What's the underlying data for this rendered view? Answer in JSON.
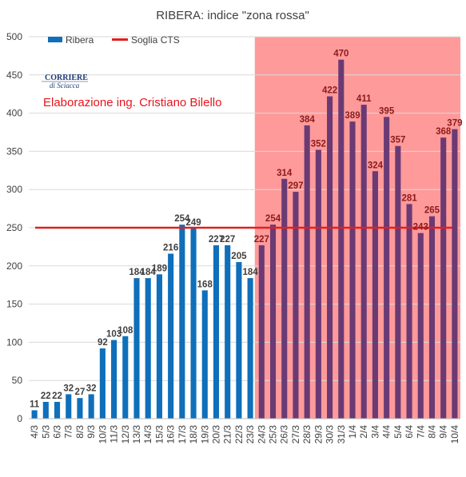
{
  "chart_data": {
    "type": "bar",
    "title": "RIBERA: indice \"zona rossa\"",
    "categories": [
      "4/3",
      "5/3",
      "6/3",
      "7/3",
      "8/3",
      "9/3",
      "10/3",
      "11/3",
      "12/3",
      "13/3",
      "14/3",
      "15/3",
      "16/3",
      "17/3",
      "18/3",
      "19/3",
      "20/3",
      "21/3",
      "22/3",
      "23/3",
      "24/3",
      "25/3",
      "26/3",
      "27/3",
      "28/3",
      "29/3",
      "30/3",
      "31/3",
      "1/4",
      "2/4",
      "3/4",
      "4/4",
      "5/4",
      "6/4",
      "7/4",
      "8/4",
      "9/4",
      "10/4"
    ],
    "series": [
      {
        "name": "Ribera",
        "values": [
          11,
          22,
          22,
          32,
          27,
          32,
          92,
          103,
          108,
          184,
          184,
          189,
          216,
          254,
          249,
          168,
          227,
          227,
          205,
          184,
          227,
          254,
          314,
          297,
          384,
          352,
          422,
          470,
          389,
          411,
          324,
          395,
          357,
          281,
          243,
          265,
          368,
          379
        ],
        "labels": [
          "11",
          "22",
          "22",
          "32",
          "27",
          "32",
          "92",
          "103",
          "108",
          "184",
          "184",
          "189",
          "216",
          "254",
          "249",
          "168",
          "227",
          "227",
          "205",
          "184",
          "227",
          "254",
          "314",
          "297",
          "384",
          "352",
          "422",
          "470",
          "389",
          "411",
          "324",
          "395",
          "357",
          "281",
          "243",
          "265",
          "368",
          "379"
        ]
      }
    ],
    "threshold": {
      "name": "Soglia CTS",
      "value": 250,
      "color": "#e02020"
    },
    "shaded_from_category": "24/3",
    "ylim": [
      0,
      500
    ],
    "yticks": [
      0,
      50,
      100,
      150,
      200,
      250,
      300,
      350,
      400,
      450,
      500
    ],
    "grid": true,
    "legend_position": "top-left",
    "colors": {
      "bar": "#0f6fba",
      "bar_in_shade": "#6a3a74",
      "label_normal": "#404040",
      "label_in_shade": "#8b1b1b",
      "shade": "#ff9a9a",
      "grid": "#d9d9d9",
      "credit": "#e8141c"
    }
  },
  "logo": {
    "line1": "CORRIERE",
    "line2": "di Sciacca"
  },
  "credit": "Elaborazione ing. Cristiano Bilello"
}
